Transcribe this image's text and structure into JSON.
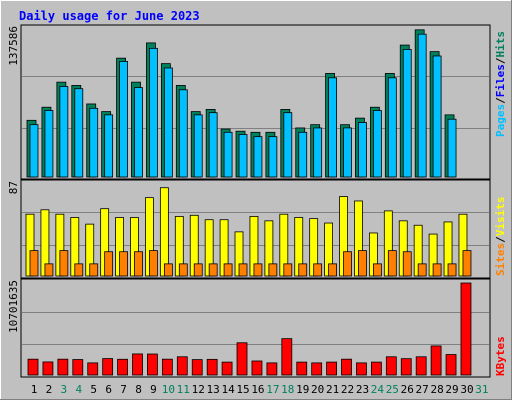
{
  "chart_data": {
    "type": "bar",
    "title": "Daily usage for June 2023",
    "categories": [
      "1",
      "2",
      "3",
      "4",
      "5",
      "6",
      "7",
      "8",
      "9",
      "10",
      "11",
      "12",
      "13",
      "14",
      "15",
      "16",
      "17",
      "18",
      "19",
      "20",
      "21",
      "22",
      "23",
      "24",
      "25",
      "26",
      "27",
      "28",
      "29",
      "30",
      "31"
    ],
    "weekend_days": [
      3,
      4,
      10,
      11,
      17,
      18,
      24,
      25,
      31
    ],
    "panels": [
      {
        "name": "pages-files-hits",
        "axis_max_label": "137586",
        "ylim": [
          0,
          137586
        ],
        "legend": [
          "Pages",
          "Files",
          "Hits"
        ],
        "series": [
          {
            "name": "Hits",
            "values": [
              52000,
              64000,
              87000,
              84000,
              67000,
              60000,
              109000,
              87000,
              123000,
              104000,
              84000,
              60000,
              62000,
              44000,
              42000,
              41000,
              41000,
              62000,
              45000,
              48000,
              95000,
              48000,
              54000,
              64000,
              95000,
              121000,
              135000,
              115000,
              57000,
              0,
              0
            ]
          },
          {
            "name": "Files",
            "values": [
              48000,
              61000,
              83000,
              81000,
              63000,
              57000,
              106000,
              82000,
              118000,
              100000,
              80000,
              57000,
              59000,
              41000,
              39000,
              37000,
              37000,
              59000,
              41000,
              45000,
              91000,
              45000,
              50000,
              61000,
              91000,
              117000,
              131000,
              111000,
              53000,
              0,
              0
            ]
          },
          {
            "name": "Pages",
            "values": [
              0,
              0,
              0,
              0,
              0,
              0,
              0,
              0,
              0,
              0,
              0,
              0,
              0,
              0,
              0,
              0,
              0,
              0,
              0,
              0,
              0,
              0,
              0,
              0,
              0,
              0,
              0,
              0,
              0,
              0,
              0
            ]
          }
        ]
      },
      {
        "name": "visits-sites",
        "axis_max_label": "87",
        "ylim": [
          0,
          87
        ],
        "legend": [
          "Visits",
          "Sites"
        ],
        "series": [
          {
            "name": "Visits",
            "values": [
              56,
              60,
              56,
              53,
              47,
              61,
              53,
              53,
              71,
              80,
              54,
              55,
              51,
              51,
              40,
              54,
              50,
              56,
              53,
              52,
              48,
              72,
              68,
              39,
              59,
              50,
              46,
              38,
              49,
              56,
              0
            ]
          },
          {
            "name": "Sites",
            "values": [
              23,
              11,
              23,
              11,
              11,
              22,
              22,
              22,
              23,
              11,
              11,
              11,
              11,
              11,
              11,
              11,
              11,
              11,
              11,
              11,
              11,
              22,
              23,
              11,
              23,
              22,
              11,
              11,
              11,
              23,
              0
            ]
          }
        ]
      },
      {
        "name": "kbytes",
        "axis_max_label": "10701635",
        "ylim": [
          0,
          10701635
        ],
        "legend": [
          "KBytes"
        ],
        "series": [
          {
            "name": "KBytes",
            "values": [
              1840000,
              1520000,
              1840000,
              1800000,
              1410000,
              1910000,
              1830000,
              2450000,
              2440000,
              1840000,
              2120000,
              1790000,
              1820000,
              1500000,
              3750000,
              1630000,
              1410000,
              4230000,
              1500000,
              1410000,
              1500000,
              1840000,
              1410000,
              1500000,
              2120000,
              1900000,
              2120000,
              3380000,
              2380000,
              10701635,
              0
            ]
          }
        ]
      }
    ],
    "colors": {
      "hits": "#00805c",
      "files": "#0000ff",
      "pages": "#00c0ff",
      "visits": "#ffff00",
      "sites": "#ff8000",
      "kbytes": "#ff0000",
      "background": "#c0c0c0",
      "title": "#0000ff",
      "weekend_label": "#00805c",
      "weekday_label": "#000000"
    }
  }
}
